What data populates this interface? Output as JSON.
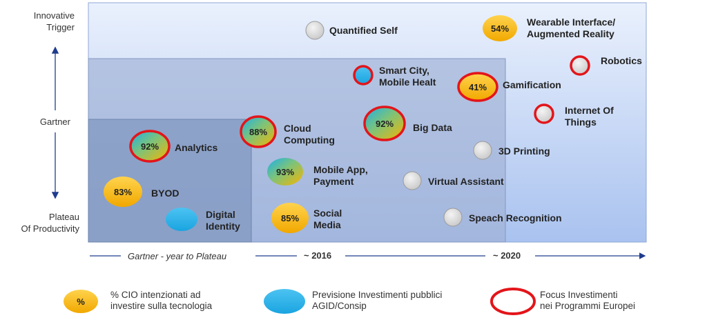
{
  "y_axis": {
    "top_label": "Innovative\nTrigger",
    "middle_label": "Gartner",
    "bottom_label": "Plateau\nOf Productivity"
  },
  "x_axis": {
    "label": "Gartner  - year to Plateau",
    "tick_2016": "~ 2016",
    "tick_2020": "~ 2020"
  },
  "colors": {
    "cio_fill": "#f7b500",
    "agid_fill": "#20b0e8",
    "focus_ring": "#e3151a",
    "neutral_fill": "#d9d9d9"
  },
  "legend": [
    {
      "marker": "cio",
      "marker_text": "%",
      "text": "% CIO intenzionati ad\ninvestire sulla tecnologia"
    },
    {
      "marker": "agid",
      "marker_text": "",
      "text": "Previsione Investimenti pubblici\nAGID/Consip"
    },
    {
      "marker": "focus",
      "marker_text": "",
      "text": "Focus Investimenti\nnei Programmi Europei"
    }
  ],
  "chart_data": {
    "type": "scatter",
    "title": "",
    "xlabel": "Gartner  - year to Plateau",
    "ylabel": "Gartner",
    "x_ticks": [
      "~ 2016",
      "~ 2020"
    ],
    "y_ticks": [
      "Innovative Trigger",
      "Plateau Of Productivity"
    ],
    "points": [
      {
        "name": "Quantified Self",
        "cio_pct": null,
        "agid": false,
        "eu_focus": false
      },
      {
        "name": "Wearable Interface/\nAugmented Reality",
        "cio_pct": "54%",
        "agid": false,
        "eu_focus": false
      },
      {
        "name": "Robotics",
        "cio_pct": null,
        "agid": false,
        "eu_focus": true
      },
      {
        "name": "Smart City,\nMobile Healt",
        "cio_pct": null,
        "agid": true,
        "eu_focus": true
      },
      {
        "name": "Gamification",
        "cio_pct": "41%",
        "agid": false,
        "eu_focus": true
      },
      {
        "name": "Internet Of\nThings",
        "cio_pct": null,
        "agid": false,
        "eu_focus": true
      },
      {
        "name": "Cloud\nComputing",
        "cio_pct": "88%",
        "agid": true,
        "eu_focus": true
      },
      {
        "name": "Big Data",
        "cio_pct": "92%",
        "agid": true,
        "eu_focus": true
      },
      {
        "name": "Analytics",
        "cio_pct": "92%",
        "agid": true,
        "eu_focus": true
      },
      {
        "name": "3D Printing",
        "cio_pct": null,
        "agid": false,
        "eu_focus": false
      },
      {
        "name": "Mobile App,\nPayment",
        "cio_pct": "93%",
        "agid": true,
        "eu_focus": false
      },
      {
        "name": "Virtual Assistant",
        "cio_pct": null,
        "agid": false,
        "eu_focus": false
      },
      {
        "name": "BYOD",
        "cio_pct": "83%",
        "agid": false,
        "eu_focus": false
      },
      {
        "name": "Digital\nIdentity",
        "cio_pct": null,
        "agid": true,
        "eu_focus": false
      },
      {
        "name": "Social\nMedia",
        "cio_pct": "85%",
        "agid": false,
        "eu_focus": false
      },
      {
        "name": "Speach Recognition",
        "cio_pct": null,
        "agid": false,
        "eu_focus": false
      }
    ]
  }
}
